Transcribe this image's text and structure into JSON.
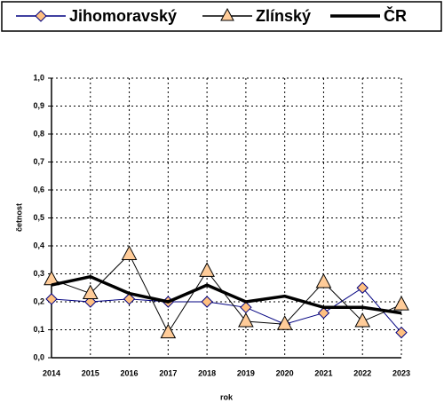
{
  "chart_data": {
    "type": "line",
    "categories": [
      "2014",
      "2015",
      "2016",
      "2017",
      "2018",
      "2019",
      "2020",
      "2021",
      "2022",
      "2023"
    ],
    "series": [
      {
        "name": "Jihomoravský",
        "color": "#000080",
        "marker": "diamond",
        "marker_color": "#ffc080",
        "values": [
          0.21,
          0.2,
          0.21,
          0.2,
          0.2,
          0.18,
          0.12,
          0.16,
          0.25,
          0.09
        ]
      },
      {
        "name": "Zlínský",
        "color": "#000000",
        "marker": "triangle",
        "marker_color": "#ffcc99",
        "values": [
          0.28,
          0.23,
          0.37,
          0.09,
          0.31,
          0.13,
          0.12,
          0.27,
          0.13,
          0.19
        ]
      },
      {
        "name": "ČR",
        "color": "#000000",
        "marker": "none",
        "line_width": 3.5,
        "values": [
          0.26,
          0.29,
          0.23,
          0.2,
          0.26,
          0.2,
          0.22,
          0.18,
          0.18,
          0.16
        ]
      }
    ],
    "x_label": "rok",
    "y_label": "četnost",
    "ylim": [
      0,
      1
    ],
    "yticks": [
      {
        "value": 0,
        "label": "0,0"
      },
      {
        "value": 0.1,
        "label": "0,1"
      },
      {
        "value": 0.2,
        "label": "0,2"
      },
      {
        "value": 0.3,
        "label": "0,3"
      },
      {
        "value": 0.4,
        "label": "0,4"
      },
      {
        "value": 0.5,
        "label": "0,5"
      },
      {
        "value": 0.6,
        "label": "0,6"
      },
      {
        "value": 0.7,
        "label": "0,7"
      },
      {
        "value": 0.8,
        "label": "0,8"
      },
      {
        "value": 0.9,
        "label": "0,9"
      },
      {
        "value": 1,
        "label": "1,0"
      }
    ],
    "grid": true,
    "legend": "top"
  }
}
